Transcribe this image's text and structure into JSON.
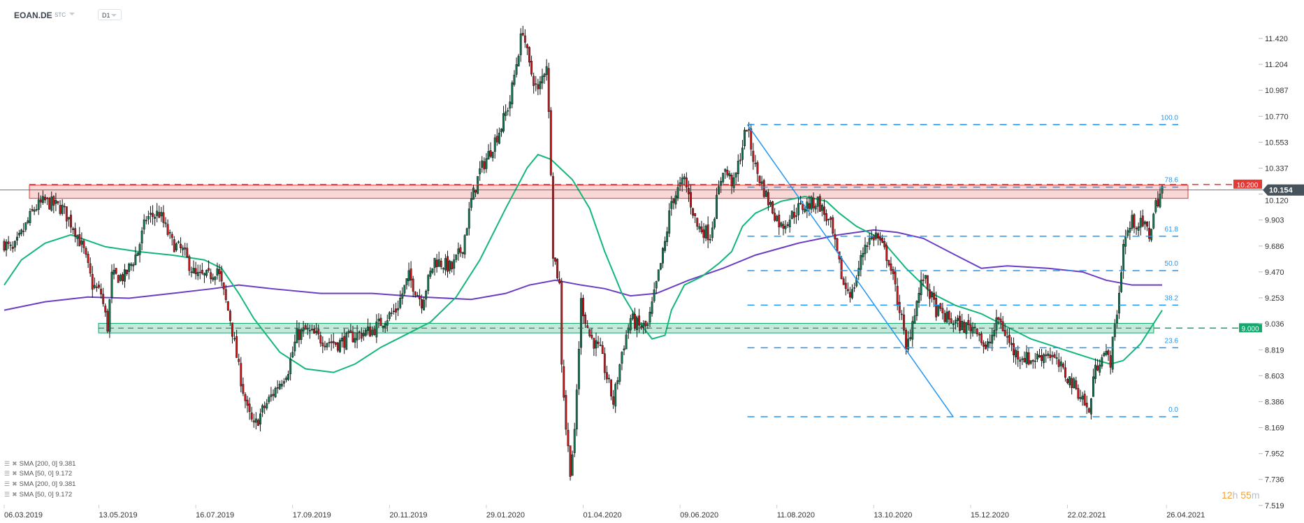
{
  "header": {
    "symbol": "EOAN.DE",
    "type": "STC",
    "timeframe": "D1"
  },
  "countdown": {
    "hours": "12",
    "h": "h",
    "minutes": "55",
    "m": "m"
  },
  "legend": [
    {
      "label": "SMA [200,  0] 9.381"
    },
    {
      "label": "SMA [50,  0] 9.172"
    },
    {
      "label": "SMA [200,  0] 9.381"
    },
    {
      "label": "SMA [50,  0] 9.172"
    }
  ],
  "colors": {
    "bull": "#0f7a50",
    "bear": "#d0161b",
    "sma50": "#13b77a",
    "sma200": "#6a3ec4",
    "fib": "#2196f3",
    "resistance": "#e53935",
    "support": "#13a86e",
    "last": "#46525c"
  },
  "chart_data": {
    "type": "candlestick",
    "title": "EOAN.DE D1",
    "ylim": [
      7.519,
      11.52
    ],
    "y_ticks": [
      "11.420",
      "11.204",
      "10.987",
      "10.770",
      "10.553",
      "10.337",
      "10.120",
      "9.903",
      "9.686",
      "9.470",
      "9.253",
      "9.036",
      "8.819",
      "8.603",
      "8.386",
      "8.169",
      "7.952",
      "7.736",
      "7.519"
    ],
    "x_ticks": [
      {
        "day": 0,
        "label": "06.03.2019"
      },
      {
        "day": 44,
        "label": "13.05.2019"
      },
      {
        "day": 89,
        "label": "16.07.2019"
      },
      {
        "day": 134,
        "label": "17.09.2019"
      },
      {
        "day": 179,
        "label": "20.11.2019"
      },
      {
        "day": 224,
        "label": "29.01.2020"
      },
      {
        "day": 269,
        "label": "01.04.2020"
      },
      {
        "day": 314,
        "label": "09.06.2020"
      },
      {
        "day": 359,
        "label": "11.08.2020"
      },
      {
        "day": 404,
        "label": "13.10.2020"
      },
      {
        "day": 449,
        "label": "15.12.2020"
      },
      {
        "day": 494,
        "label": "22.02.2021"
      },
      {
        "day": 540,
        "label": "26.04.2021"
      }
    ],
    "close_path": [
      [
        0,
        9.71
      ],
      [
        4,
        9.64
      ],
      [
        8,
        9.78
      ],
      [
        14,
        10.0
      ],
      [
        19,
        10.06
      ],
      [
        27,
        10.0
      ],
      [
        33,
        9.82
      ],
      [
        37,
        9.64
      ],
      [
        41,
        9.36
      ],
      [
        45,
        9.29
      ],
      [
        48,
        9.01
      ],
      [
        50,
        9.43
      ],
      [
        56,
        9.43
      ],
      [
        62,
        9.64
      ],
      [
        66,
        9.92
      ],
      [
        72,
        9.96
      ],
      [
        78,
        9.71
      ],
      [
        83,
        9.64
      ],
      [
        89,
        9.43
      ],
      [
        95,
        9.43
      ],
      [
        99,
        9.5
      ],
      [
        102,
        9.29
      ],
      [
        105,
        9.08
      ],
      [
        109,
        8.66
      ],
      [
        113,
        8.31
      ],
      [
        116,
        8.17
      ],
      [
        120,
        8.31
      ],
      [
        126,
        8.49
      ],
      [
        132,
        8.66
      ],
      [
        136,
        8.94
      ],
      [
        140,
        8.98
      ],
      [
        147,
        8.91
      ],
      [
        155,
        8.87
      ],
      [
        163,
        8.94
      ],
      [
        171,
        8.98
      ],
      [
        177,
        9.08
      ],
      [
        182,
        9.15
      ],
      [
        188,
        9.43
      ],
      [
        194,
        9.22
      ],
      [
        200,
        9.57
      ],
      [
        208,
        9.5
      ],
      [
        213,
        9.68
      ],
      [
        217,
        10.06
      ],
      [
        221,
        10.31
      ],
      [
        225,
        10.45
      ],
      [
        231,
        10.69
      ],
      [
        235,
        10.9
      ],
      [
        239,
        11.32
      ],
      [
        241,
        11.5
      ],
      [
        244,
        11.18
      ],
      [
        248,
        10.97
      ],
      [
        252,
        11.22
      ],
      [
        254,
        10.34
      ],
      [
        255,
        9.64
      ],
      [
        258,
        9.36
      ],
      [
        259,
        8.73
      ],
      [
        261,
        8.17
      ],
      [
        263,
        7.82
      ],
      [
        265,
        8.1
      ],
      [
        268,
        9.22
      ],
      [
        272,
        8.94
      ],
      [
        277,
        8.8
      ],
      [
        283,
        8.38
      ],
      [
        287,
        8.8
      ],
      [
        291,
        9.08
      ],
      [
        295,
        9.01
      ],
      [
        299,
        9.01
      ],
      [
        303,
        9.36
      ],
      [
        307,
        9.71
      ],
      [
        310,
        10.06
      ],
      [
        316,
        10.24
      ],
      [
        322,
        9.85
      ],
      [
        328,
        9.78
      ],
      [
        334,
        10.34
      ],
      [
        339,
        10.2
      ],
      [
        345,
        10.69
      ],
      [
        349,
        10.34
      ],
      [
        355,
        10.06
      ],
      [
        361,
        9.85
      ],
      [
        369,
        10.0
      ],
      [
        378,
        10.06
      ],
      [
        384,
        9.85
      ],
      [
        390,
        9.36
      ],
      [
        394,
        9.29
      ],
      [
        400,
        9.71
      ],
      [
        405,
        9.78
      ],
      [
        411,
        9.57
      ],
      [
        417,
        9.08
      ],
      [
        419,
        8.8
      ],
      [
        423,
        9.15
      ],
      [
        427,
        9.43
      ],
      [
        433,
        9.15
      ],
      [
        438,
        9.08
      ],
      [
        446,
        9.01
      ],
      [
        452,
        9.01
      ],
      [
        456,
        8.8
      ],
      [
        462,
        9.08
      ],
      [
        469,
        8.8
      ],
      [
        477,
        8.73
      ],
      [
        485,
        8.8
      ],
      [
        491,
        8.66
      ],
      [
        497,
        8.52
      ],
      [
        501,
        8.42
      ],
      [
        504,
        8.28
      ],
      [
        506,
        8.59
      ],
      [
        510,
        8.8
      ],
      [
        514,
        8.73
      ],
      [
        518,
        9.29
      ],
      [
        520,
        9.71
      ],
      [
        524,
        9.89
      ],
      [
        530,
        9.85
      ],
      [
        532,
        9.78
      ],
      [
        535,
        10.03
      ],
      [
        538,
        10.17
      ]
    ],
    "sma50": [
      [
        0,
        9.36
      ],
      [
        8,
        9.57
      ],
      [
        19,
        9.71
      ],
      [
        31,
        9.78
      ],
      [
        47,
        9.68
      ],
      [
        62,
        9.64
      ],
      [
        78,
        9.61
      ],
      [
        93,
        9.57
      ],
      [
        101,
        9.5
      ],
      [
        109,
        9.29
      ],
      [
        116,
        9.08
      ],
      [
        128,
        8.8
      ],
      [
        140,
        8.66
      ],
      [
        153,
        8.63
      ],
      [
        163,
        8.7
      ],
      [
        175,
        8.84
      ],
      [
        186,
        8.94
      ],
      [
        198,
        9.05
      ],
      [
        210,
        9.26
      ],
      [
        221,
        9.57
      ],
      [
        233,
        10.0
      ],
      [
        243,
        10.34
      ],
      [
        248,
        10.45
      ],
      [
        254,
        10.41
      ],
      [
        264,
        10.24
      ],
      [
        272,
        10.0
      ],
      [
        279,
        9.64
      ],
      [
        287,
        9.29
      ],
      [
        295,
        9.05
      ],
      [
        301,
        8.91
      ],
      [
        307,
        8.94
      ],
      [
        310,
        9.15
      ],
      [
        316,
        9.36
      ],
      [
        324,
        9.43
      ],
      [
        332,
        9.54
      ],
      [
        338,
        9.64
      ],
      [
        343,
        9.85
      ],
      [
        349,
        9.96
      ],
      [
        361,
        10.06
      ],
      [
        372,
        10.1
      ],
      [
        382,
        10.06
      ],
      [
        388,
        9.96
      ],
      [
        396,
        9.85
      ],
      [
        407,
        9.75
      ],
      [
        419,
        9.5
      ],
      [
        431,
        9.29
      ],
      [
        442,
        9.19
      ],
      [
        454,
        9.12
      ],
      [
        466,
        9.01
      ],
      [
        477,
        8.91
      ],
      [
        489,
        8.84
      ],
      [
        501,
        8.77
      ],
      [
        508,
        8.73
      ],
      [
        514,
        8.7
      ],
      [
        520,
        8.73
      ],
      [
        528,
        8.87
      ],
      [
        538,
        9.15
      ]
    ],
    "sma200": [
      [
        0,
        9.15
      ],
      [
        19,
        9.22
      ],
      [
        39,
        9.26
      ],
      [
        58,
        9.25
      ],
      [
        78,
        9.29
      ],
      [
        97,
        9.33
      ],
      [
        109,
        9.36
      ],
      [
        124,
        9.33
      ],
      [
        147,
        9.29
      ],
      [
        171,
        9.29
      ],
      [
        194,
        9.26
      ],
      [
        217,
        9.24
      ],
      [
        233,
        9.29
      ],
      [
        244,
        9.36
      ],
      [
        256,
        9.4
      ],
      [
        268,
        9.36
      ],
      [
        279,
        9.33
      ],
      [
        291,
        9.27
      ],
      [
        303,
        9.29
      ],
      [
        318,
        9.4
      ],
      [
        334,
        9.5
      ],
      [
        349,
        9.61
      ],
      [
        369,
        9.71
      ],
      [
        388,
        9.78
      ],
      [
        404,
        9.82
      ],
      [
        415,
        9.8
      ],
      [
        427,
        9.75
      ],
      [
        442,
        9.61
      ],
      [
        454,
        9.5
      ],
      [
        466,
        9.52
      ],
      [
        485,
        9.5
      ],
      [
        501,
        9.47
      ],
      [
        512,
        9.4
      ],
      [
        524,
        9.36
      ],
      [
        538,
        9.36
      ]
    ],
    "fibonacci": {
      "high": 10.7,
      "low": 8.26,
      "start_day": 345,
      "end_day": 423,
      "levels": [
        {
          "label": "100.0",
          "ratio": 1.0
        },
        {
          "label": "78.6",
          "ratio": 0.786
        },
        {
          "label": "61.8",
          "ratio": 0.618
        },
        {
          "label": "50.0",
          "ratio": 0.5
        },
        {
          "label": "38.2",
          "ratio": 0.382
        },
        {
          "label": "23.6",
          "ratio": 0.236
        },
        {
          "label": "0.0",
          "ratio": 0.0
        }
      ]
    },
    "resistance": {
      "level": 10.2,
      "label": "10.200",
      "zone": [
        10.09,
        10.2
      ]
    },
    "support": {
      "level": 9.0,
      "label": "9.000",
      "zone": [
        8.96,
        9.04
      ]
    },
    "last_price": {
      "value": 10.154,
      "label": "10.154"
    }
  }
}
